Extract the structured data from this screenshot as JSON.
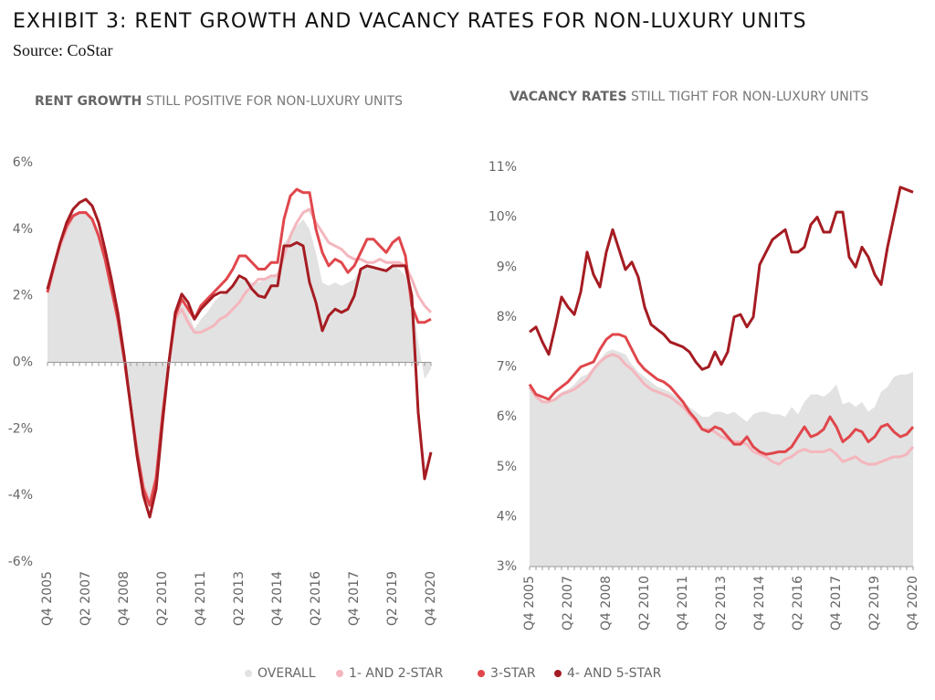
{
  "title": "EXHIBIT 3: RENT GROWTH AND VACANCY RATES FOR NON-LUXURY UNITS",
  "source": "Source: CoStar",
  "chart_data": [
    {
      "type": "line",
      "title": "RENT GROWTH",
      "subtitle": "STILL POSITIVE FOR NON-LUXURY UNITS",
      "categories": [
        "Q4 2005",
        null,
        null,
        null,
        null,
        null,
        "Q2 2007",
        null,
        null,
        null,
        null,
        null,
        "Q4 2008",
        null,
        null,
        null,
        null,
        null,
        "Q2 2010",
        null,
        null,
        null,
        null,
        null,
        "Q4 2011",
        null,
        null,
        null,
        null,
        null,
        "Q2 2013",
        null,
        null,
        null,
        null,
        null,
        "Q4 2014",
        null,
        null,
        null,
        null,
        null,
        "Q2 2016",
        null,
        null,
        null,
        null,
        null,
        "Q4 2017",
        null,
        null,
        null,
        null,
        null,
        "Q2 2019",
        null,
        null,
        null,
        null,
        null,
        "Q4 2020"
      ],
      "ylim": [
        -6,
        6
      ],
      "yticks": [
        {
          "value": -6,
          "label": "-6%"
        },
        {
          "value": -4,
          "label": "-4%"
        },
        {
          "value": -2,
          "label": "-2%"
        },
        {
          "value": 0,
          "label": "0%"
        },
        {
          "value": 2,
          "label": "2%"
        },
        {
          "value": 4,
          "label": "4%"
        },
        {
          "value": 6,
          "label": "6%"
        }
      ],
      "series": [
        {
          "name": "OVERALL",
          "color": "#e2e2e2",
          "area": true,
          "values": [
            2.1,
            2.8,
            3.5,
            4.0,
            4.4,
            4.5,
            4.5,
            4.3,
            3.8,
            3.1,
            2.2,
            1.3,
            0.1,
            -1.3,
            -2.6,
            -3.7,
            -4.2,
            -3.4,
            -1.6,
            0.0,
            1.4,
            1.8,
            1.5,
            1.0,
            1.3,
            1.5,
            1.8,
            2.0,
            2.1,
            2.3,
            2.5,
            2.5,
            2.4,
            2.4,
            2.5,
            2.6,
            2.7,
            3.6,
            3.8,
            4.1,
            4.3,
            4.0,
            3.3,
            2.4,
            2.3,
            2.4,
            2.3,
            2.4,
            2.5,
            2.8,
            2.9,
            2.8,
            2.8,
            2.8,
            2.9,
            2.8,
            2.6,
            2.0,
            0.6,
            -0.5,
            -0.2
          ]
        },
        {
          "name": "1- AND 2-STAR",
          "color": "#f4b6bd",
          "values": [
            2.1,
            2.8,
            3.5,
            4.0,
            4.4,
            4.5,
            4.5,
            4.3,
            3.8,
            3.1,
            2.2,
            1.3,
            0.1,
            -1.3,
            -2.6,
            -3.7,
            -4.2,
            -3.4,
            -1.6,
            0.0,
            1.3,
            1.6,
            1.2,
            0.9,
            0.9,
            1.0,
            1.1,
            1.3,
            1.4,
            1.6,
            1.8,
            2.1,
            2.3,
            2.5,
            2.5,
            2.6,
            2.6,
            3.2,
            3.8,
            4.2,
            4.5,
            4.6,
            4.2,
            3.9,
            3.6,
            3.5,
            3.4,
            3.2,
            3.1,
            3.1,
            3.0,
            3.0,
            3.1,
            3.0,
            3.0,
            3.0,
            2.9,
            2.5,
            2.0,
            1.7,
            1.5
          ]
        },
        {
          "name": "3-STAR",
          "color": "#e0474c",
          "values": [
            2.1,
            2.9,
            3.6,
            4.1,
            4.4,
            4.5,
            4.5,
            4.3,
            3.8,
            3.1,
            2.2,
            1.3,
            0.1,
            -1.3,
            -2.7,
            -3.8,
            -4.3,
            -3.5,
            -1.6,
            0.0,
            1.4,
            1.9,
            1.6,
            1.3,
            1.7,
            1.9,
            2.1,
            2.3,
            2.5,
            2.8,
            3.2,
            3.2,
            3.0,
            2.8,
            2.8,
            3.0,
            3.0,
            4.3,
            5.0,
            5.2,
            5.1,
            5.1,
            4.0,
            3.3,
            2.9,
            3.1,
            3.0,
            2.7,
            2.9,
            3.3,
            3.7,
            3.7,
            3.5,
            3.3,
            3.6,
            3.75,
            3.2,
            1.7,
            1.2,
            1.2,
            1.3
          ]
        },
        {
          "name": "4- AND 5-STAR",
          "color": "#a51c22",
          "values": [
            2.2,
            2.9,
            3.6,
            4.2,
            4.6,
            4.8,
            4.9,
            4.7,
            4.2,
            3.4,
            2.5,
            1.5,
            0.2,
            -1.3,
            -2.8,
            -4.0,
            -4.65,
            -3.8,
            -1.8,
            0.0,
            1.5,
            2.05,
            1.8,
            1.3,
            1.6,
            1.8,
            2.0,
            2.1,
            2.1,
            2.3,
            2.6,
            2.5,
            2.2,
            2.0,
            1.95,
            2.3,
            2.3,
            3.5,
            3.5,
            3.6,
            3.5,
            2.4,
            1.8,
            0.95,
            1.4,
            1.6,
            1.5,
            1.6,
            2.0,
            2.8,
            2.9,
            2.85,
            2.8,
            2.75,
            2.9,
            2.9,
            2.9,
            2.0,
            -1.5,
            -3.5,
            -2.7
          ]
        }
      ]
    },
    {
      "type": "line",
      "title": "VACANCY RATES",
      "subtitle": "STILL TIGHT FOR NON-LUXURY UNITS",
      "categories": [
        "Q4 2005",
        null,
        null,
        null,
        null,
        null,
        "Q2 2007",
        null,
        null,
        null,
        null,
        null,
        "Q4 2008",
        null,
        null,
        null,
        null,
        null,
        "Q2 2010",
        null,
        null,
        null,
        null,
        null,
        "Q4 2011",
        null,
        null,
        null,
        null,
        null,
        "Q2 2013",
        null,
        null,
        null,
        null,
        null,
        "Q4 2014",
        null,
        null,
        null,
        null,
        null,
        "Q2 2016",
        null,
        null,
        null,
        null,
        null,
        "Q4 2017",
        null,
        null,
        null,
        null,
        null,
        "Q2 2019",
        null,
        null,
        null,
        null,
        null,
        "Q4 2020"
      ],
      "ylim": [
        3,
        11
      ],
      "yticks": [
        {
          "value": 3,
          "label": "3%"
        },
        {
          "value": 4,
          "label": "4%"
        },
        {
          "value": 5,
          "label": "5%"
        },
        {
          "value": 6,
          "label": "6%"
        },
        {
          "value": 7,
          "label": "7%"
        },
        {
          "value": 8,
          "label": "8%"
        },
        {
          "value": 9,
          "label": "9%"
        },
        {
          "value": 10,
          "label": "10%"
        },
        {
          "value": 11,
          "label": "11%"
        }
      ],
      "series": [
        {
          "color": "#e2e2e2",
          "area": true,
          "values": [
            6.6,
            6.45,
            6.35,
            6.3,
            6.4,
            6.5,
            6.55,
            6.65,
            6.8,
            6.85,
            7.0,
            7.15,
            7.3,
            7.35,
            7.3,
            7.25,
            7.05,
            6.9,
            6.8,
            6.7,
            6.6,
            6.55,
            6.5,
            6.4,
            6.3,
            6.2,
            6.1,
            6.0,
            6.0,
            6.1,
            6.1,
            6.05,
            6.1,
            6.0,
            5.9,
            6.05,
            6.1,
            6.1,
            6.05,
            6.05,
            6.0,
            6.2,
            6.05,
            6.3,
            6.45,
            6.45,
            6.4,
            6.5,
            6.65,
            6.25,
            6.3,
            6.2,
            6.3,
            6.1,
            6.2,
            6.5,
            6.6,
            6.8,
            6.85,
            6.85,
            6.9
          ]
        },
        {
          "color": "#f4b6bd",
          "values": [
            6.6,
            6.4,
            6.3,
            6.3,
            6.35,
            6.45,
            6.5,
            6.55,
            6.65,
            6.75,
            6.95,
            7.1,
            7.2,
            7.25,
            7.2,
            7.05,
            6.95,
            6.8,
            6.65,
            6.55,
            6.5,
            6.45,
            6.4,
            6.3,
            6.2,
            6.05,
            5.9,
            5.75,
            5.75,
            5.7,
            5.6,
            5.55,
            5.5,
            5.5,
            5.45,
            5.3,
            5.25,
            5.2,
            5.1,
            5.05,
            5.15,
            5.2,
            5.3,
            5.35,
            5.3,
            5.3,
            5.3,
            5.35,
            5.25,
            5.1,
            5.15,
            5.2,
            5.1,
            5.05,
            5.05,
            5.1,
            5.15,
            5.2,
            5.2,
            5.25,
            5.4
          ]
        },
        {
          "color": "#e0474c",
          "values": [
            6.65,
            6.45,
            6.4,
            6.35,
            6.5,
            6.6,
            6.7,
            6.85,
            7.0,
            7.05,
            7.1,
            7.35,
            7.55,
            7.65,
            7.65,
            7.6,
            7.35,
            7.1,
            6.95,
            6.85,
            6.75,
            6.7,
            6.6,
            6.45,
            6.3,
            6.1,
            5.95,
            5.75,
            5.7,
            5.8,
            5.75,
            5.6,
            5.45,
            5.45,
            5.6,
            5.4,
            5.3,
            5.25,
            5.27,
            5.3,
            5.3,
            5.4,
            5.6,
            5.8,
            5.6,
            5.65,
            5.75,
            6.0,
            5.8,
            5.5,
            5.6,
            5.75,
            5.7,
            5.5,
            5.6,
            5.8,
            5.85,
            5.7,
            5.6,
            5.65,
            5.8
          ]
        },
        {
          "color": "#a51c22",
          "values": [
            7.7,
            7.8,
            7.5,
            7.25,
            7.8,
            8.4,
            8.2,
            8.05,
            8.5,
            9.3,
            8.85,
            8.6,
            9.3,
            9.75,
            9.35,
            8.95,
            9.1,
            8.8,
            8.2,
            7.85,
            7.75,
            7.65,
            7.5,
            7.45,
            7.4,
            7.3,
            7.1,
            6.95,
            7.0,
            7.3,
            7.05,
            7.3,
            8.0,
            8.05,
            7.8,
            8.0,
            9.05,
            9.3,
            9.55,
            9.65,
            9.75,
            9.3,
            9.3,
            9.4,
            9.85,
            10.0,
            9.7,
            9.7,
            10.1,
            10.1,
            9.2,
            9.0,
            9.4,
            9.2,
            8.85,
            8.65,
            9.4,
            10.0,
            10.6,
            10.55,
            10.5
          ]
        }
      ]
    }
  ]
}
